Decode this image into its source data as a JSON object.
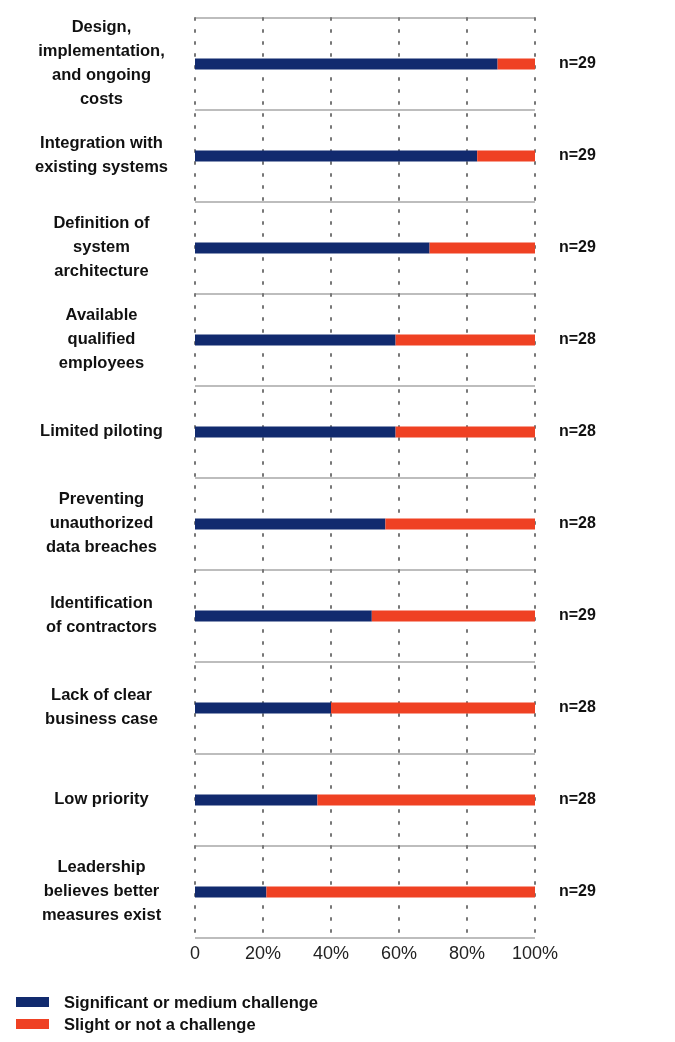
{
  "chart_data": {
    "type": "bar",
    "orientation": "horizontal",
    "stacked": true,
    "categories": [
      "Design, implementation, and ongoing costs",
      "Integration with existing systems",
      "Definition of system architecture",
      "Available qualified employees",
      "Limited piloting",
      "Preventing unauthorized data breaches",
      "Identification of contractors",
      "Lack of clear business case",
      "Low priority",
      "Leadership believes better measures exist"
    ],
    "series": [
      {
        "name": "Significant or medium challenge",
        "color": "#112a6e",
        "values": [
          89,
          83,
          69,
          59,
          59,
          56,
          52,
          40,
          36,
          21
        ]
      },
      {
        "name": "Slight or not a challenge",
        "color": "#ef4123",
        "values": [
          11,
          17,
          31,
          41,
          41,
          44,
          48,
          60,
          64,
          79
        ]
      }
    ],
    "xlim": [
      0,
      100
    ],
    "xticks": [
      0,
      {
        "value": 20,
        "label": "20%"
      },
      {
        "value": 40,
        "label": "40%"
      },
      {
        "value": 60,
        "label": "60%"
      },
      {
        "value": 80,
        "label": "80%"
      },
      {
        "value": 100,
        "label": "100%"
      }
    ],
    "grid": "x",
    "legend": "bottom left",
    "annotations": [
      "n=29",
      "n=29",
      "n=29",
      "n=28",
      "n=28",
      "n=28",
      "n=29",
      "n=28",
      "n=28",
      "n=29"
    ]
  }
}
